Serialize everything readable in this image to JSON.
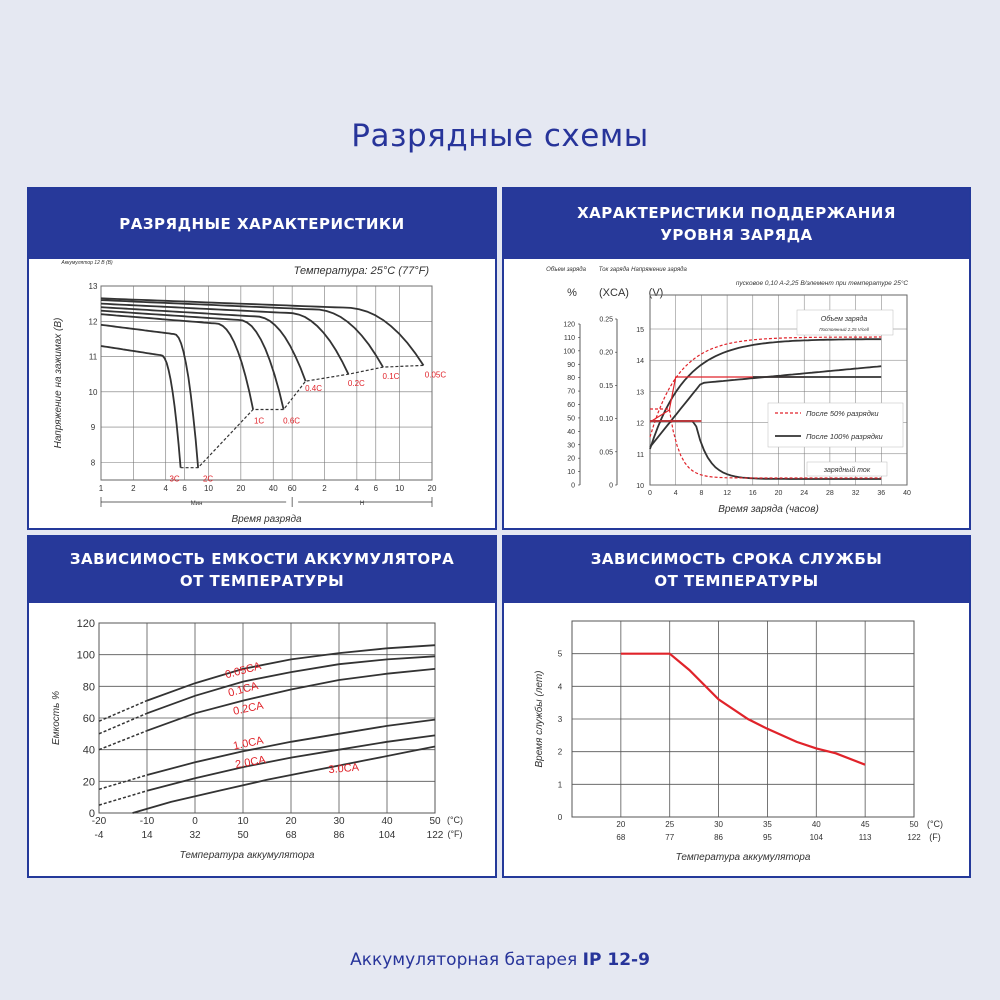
{
  "page": {
    "title": "Разрядные схемы",
    "footer_prefix": "Аккумуляторная батарея",
    "footer_model": "IP 12-9"
  },
  "chart_data": [
    {
      "id": "discharge",
      "type": "line",
      "title": "РАЗРЯДНЫЕ ХАРАКТЕРИСТИКИ",
      "subtitle": "Температура: 25°C (77°F)",
      "battery_note": "Аккумулятор 12 В (В)",
      "ylabel": "Напряжение на зажимах (В)",
      "xlabel": "Время разряда",
      "ylim": [
        7.5,
        13
      ],
      "y_ticks": [
        "13",
        "12",
        "11",
        "10",
        "9",
        "8"
      ],
      "x_ticks": [
        "1",
        "2",
        "4",
        "6",
        "10",
        "20",
        "40",
        "60",
        "2",
        "4",
        "6",
        "10",
        "20"
      ],
      "min_label": "Мин",
      "hour_label": "Н",
      "series": [
        {
          "label": "3C",
          "end_min": 5.5,
          "start_v": 11.3
        },
        {
          "label": "2C",
          "end_min": 8,
          "start_v": 11.9
        },
        {
          "label": "1C",
          "end_min": 26,
          "start_v": 12.2
        },
        {
          "label": "0.6C",
          "end_min": 50,
          "start_v": 12.3
        },
        {
          "label": "0.4C",
          "end_min": 80,
          "start_v": 12.4
        },
        {
          "label": "0.2C",
          "end_min": 200,
          "start_v": 12.5
        },
        {
          "label": "0.1C",
          "end_min": 420,
          "start_v": 12.6
        },
        {
          "label": "0.05C",
          "end_min": 1000,
          "start_v": 12.65
        }
      ],
      "cutoff_v": [
        7.85,
        7.85,
        9.5,
        9.5,
        10.3,
        10.5,
        10.7,
        10.75
      ]
    },
    {
      "id": "float",
      "type": "line",
      "title_line1": "ХАРАКТЕРИСТИКИ ПОДДЕРЖАНИЯ",
      "title_line2": "УРОВНЯ ЗАРЯДА",
      "axis1_name": "Объем заряда",
      "axis1_unit": "%",
      "axis2_name": "Ток заряда",
      "axis2_unit": "(XCA)",
      "axis3_name": "Напряжение заряда",
      "axis3_unit": "(V)",
      "note": "пусковое 0,10 А-2,25 В/элемент при температуре 25°C",
      "capacity_ticks": [
        "120",
        "110",
        "100",
        "90",
        "80",
        "70",
        "60",
        "50",
        "40",
        "30",
        "20",
        "10",
        "0"
      ],
      "current_ticks": [
        "0.25",
        "0.20",
        "0.15",
        "0.10",
        "0.05",
        "0"
      ],
      "voltage_ticks": [
        "15",
        "14",
        "13",
        "12",
        "11",
        "10"
      ],
      "x_ticks": [
        "0",
        "4",
        "8",
        "12",
        "16",
        "20",
        "24",
        "28",
        "32",
        "36",
        "40"
      ],
      "xlabel": "Время заряда (часов)",
      "label_capacity": "Объем заряда",
      "label_const": "Постоянный 2.25 V/cell",
      "legend_50": "После 50% разрядки",
      "legend_100": "После 100% разрядки",
      "label_current": "зарядный ток"
    },
    {
      "id": "capacity_temp",
      "type": "line",
      "title_line1": "ЗАВИСИМОСТЬ ЕМКОСТИ АККУМУЛЯТОРА",
      "title_line2": "ОТ ТЕМПЕРАТУРЫ",
      "ylabel": "Емкость %",
      "xlabel": "Температура аккумулятора",
      "ylim": [
        0,
        120
      ],
      "xlim": [
        -20,
        50
      ],
      "y_ticks": [
        "120",
        "100",
        "80",
        "60",
        "40",
        "20",
        "0"
      ],
      "x_ticks_c": [
        "-20",
        "-10",
        "0",
        "10",
        "20",
        "30",
        "40",
        "50"
      ],
      "x_ticks_f": [
        "-4",
        "14",
        "32",
        "50",
        "68",
        "86",
        "104",
        "122"
      ],
      "unit_c": "(°C)",
      "unit_f": "(°F)",
      "series": [
        {
          "name": "0.05CA",
          "x": [
            -20,
            -10,
            0,
            10,
            20,
            30,
            40,
            50
          ],
          "y": [
            58,
            71,
            82,
            91,
            97,
            101,
            104,
            106
          ]
        },
        {
          "name": "0.1CA",
          "x": [
            -20,
            -10,
            0,
            10,
            20,
            30,
            40,
            50
          ],
          "y": [
            50,
            63,
            74,
            83,
            89,
            94,
            97,
            99
          ]
        },
        {
          "name": "0.2CA",
          "x": [
            -20,
            -10,
            0,
            10,
            20,
            30,
            40,
            50
          ],
          "y": [
            40,
            52,
            63,
            71,
            78,
            84,
            88,
            91
          ]
        },
        {
          "name": "1.0CA",
          "x": [
            -20,
            -10,
            0,
            10,
            20,
            30,
            40,
            50
          ],
          "y": [
            15,
            24,
            32,
            39,
            45,
            50,
            55,
            59
          ]
        },
        {
          "name": "2.0CA",
          "x": [
            -20,
            -10,
            0,
            10,
            20,
            30,
            40,
            50
          ],
          "y": [
            5,
            14,
            22,
            29,
            35,
            40,
            45,
            49
          ]
        },
        {
          "name": "3.0CA",
          "x": [
            -13,
            -5,
            5,
            15,
            25,
            35,
            45,
            50
          ],
          "y": [
            0,
            7,
            14,
            21,
            27,
            33,
            39,
            42
          ]
        }
      ]
    },
    {
      "id": "life_temp",
      "type": "line",
      "title_line1": "ЗАВИСИМОСТЬ СРОКА СЛУЖБЫ",
      "title_line2": "ОТ ТЕМПЕРАТУРЫ",
      "ylabel": "Время службы (лет)",
      "xlabel": "Температура аккумулятора",
      "ylim": [
        0,
        6
      ],
      "xlim": [
        15,
        50
      ],
      "y_ticks": [
        "5",
        "4",
        "3",
        "2",
        "1",
        "0"
      ],
      "x_ticks_c": [
        "20",
        "25",
        "30",
        "35",
        "40",
        "45",
        "50"
      ],
      "x_ticks_f": [
        "68",
        "77",
        "86",
        "95",
        "104",
        "113",
        "122"
      ],
      "unit_c": "(°C)",
      "unit_f": "(F)",
      "series": [
        {
          "name": "",
          "color": "#e0232a",
          "x": [
            20,
            25,
            27,
            30,
            33,
            35,
            38,
            40,
            42,
            45
          ],
          "y": [
            5,
            5,
            4.5,
            3.6,
            3.0,
            2.7,
            2.3,
            2.1,
            1.95,
            1.6
          ]
        }
      ]
    }
  ]
}
